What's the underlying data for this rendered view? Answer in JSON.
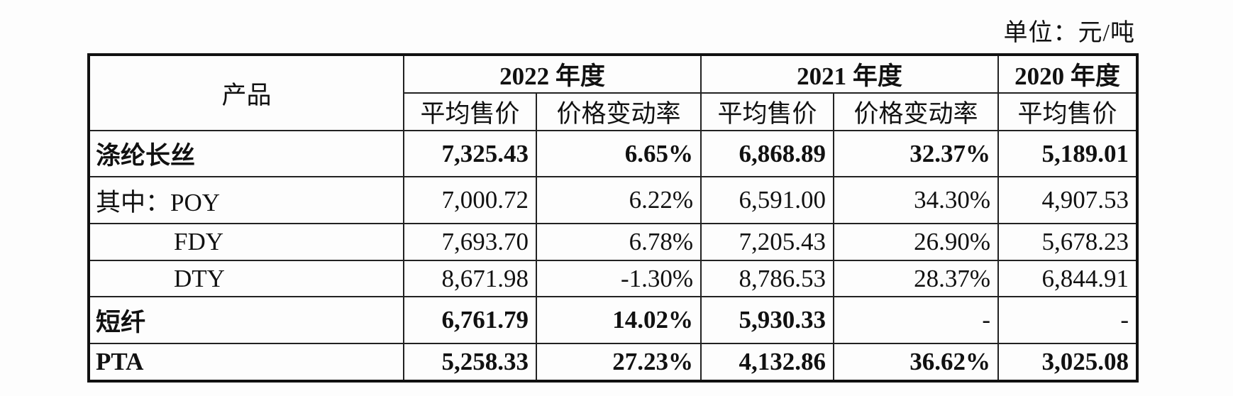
{
  "unit_label": "单位：元/吨",
  "header": {
    "product": "产品",
    "years": [
      "2022 年度",
      "2021 年度",
      "2020 年度"
    ],
    "sub": [
      "平均售价",
      "价格变动率",
      "平均售价",
      "价格变动率",
      "平均售价"
    ]
  },
  "rows": [
    {
      "name": "涤纶长丝",
      "v": [
        "7,325.43",
        "6.65%",
        "6,868.89",
        "32.37%",
        "5,189.01"
      ]
    },
    {
      "name": "其中：POY",
      "v": [
        "7,000.72",
        "6.22%",
        "6,591.00",
        "34.30%",
        "4,907.53"
      ]
    },
    {
      "name": "FDY",
      "v": [
        "7,693.70",
        "6.78%",
        "7,205.43",
        "26.90%",
        "5,678.23"
      ]
    },
    {
      "name": "DTY",
      "v": [
        "8,671.98",
        "-1.30%",
        "8,786.53",
        "28.37%",
        "6,844.91"
      ]
    },
    {
      "name": "短纤",
      "v": [
        "6,761.79",
        "14.02%",
        "5,930.33",
        "-",
        "-"
      ]
    },
    {
      "name": "PTA",
      "v": [
        "5,258.33",
        "27.23%",
        "4,132.86",
        "36.62%",
        "3,025.08"
      ]
    }
  ]
}
